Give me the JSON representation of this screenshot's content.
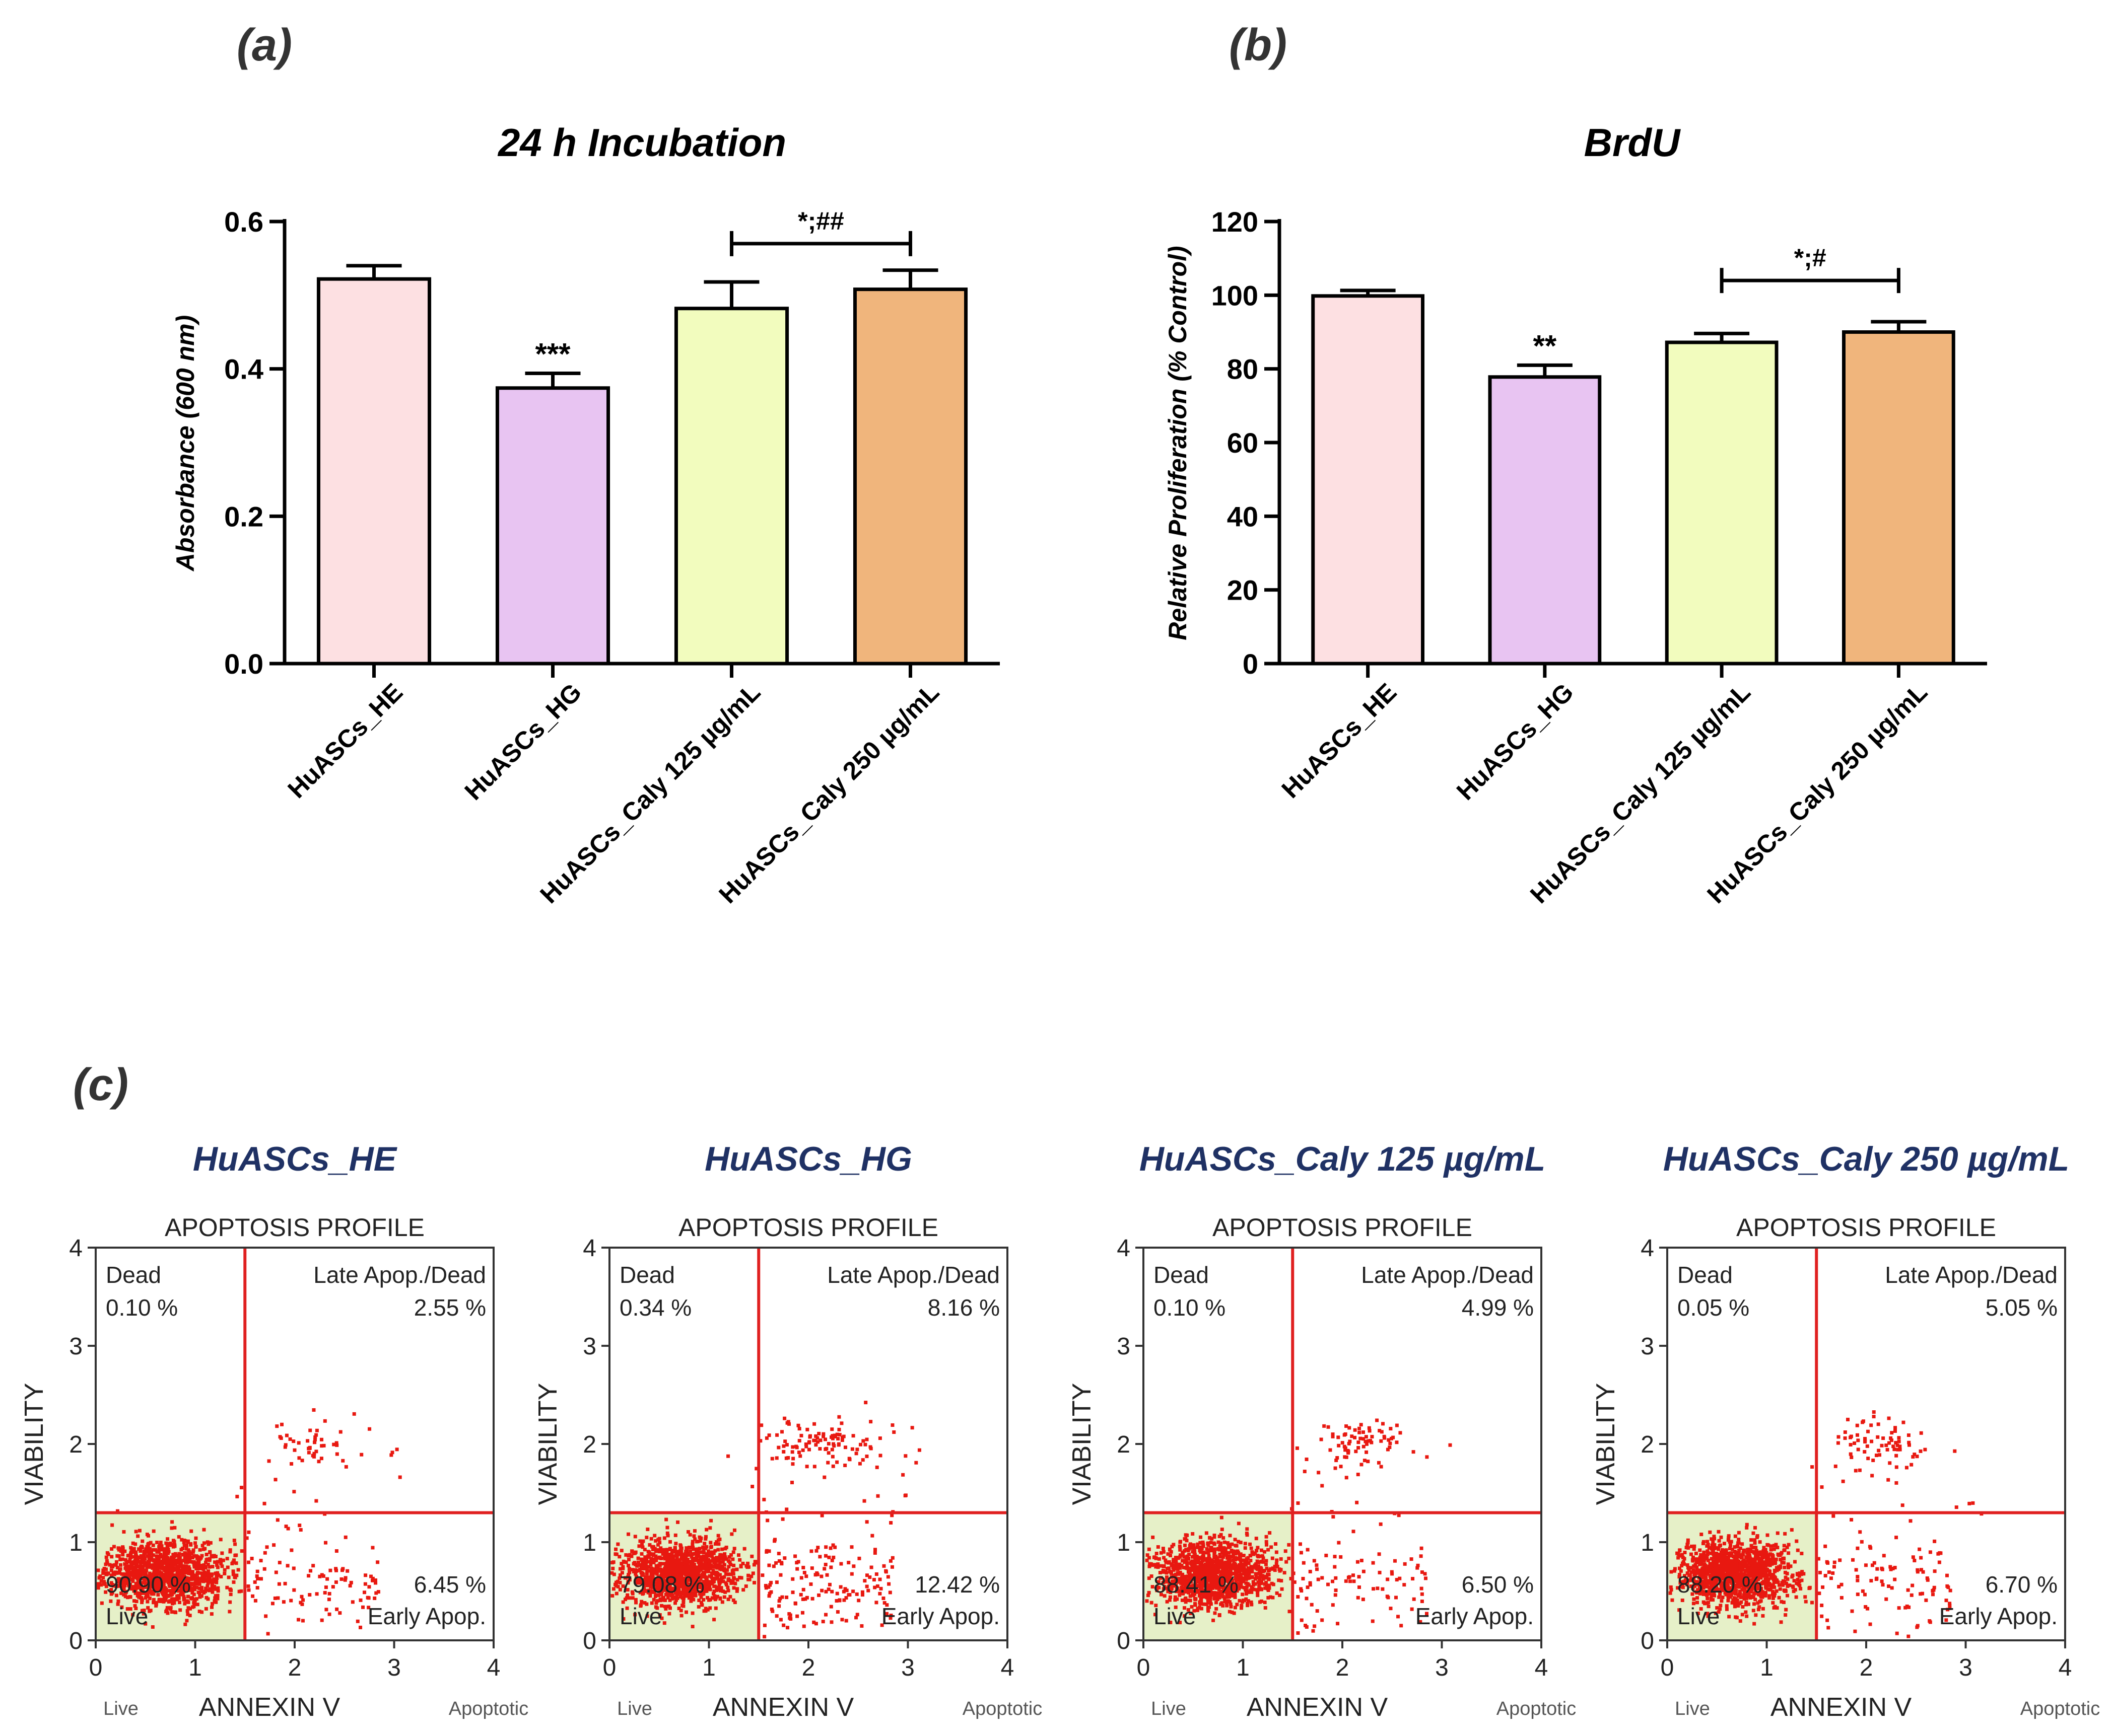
{
  "panel_labels": {
    "a": "(a)",
    "b": "(b)",
    "c": "(c)"
  },
  "colors": {
    "he": "#fde0e2",
    "hg": "#e8c4f2",
    "caly125": "#f2fcbe",
    "caly250": "#f0b57c",
    "flow_title": "#1f3164",
    "quadrant": "#e02020",
    "dots": "#e81810",
    "live_fill": "#e6f0c8"
  },
  "chart_data": [
    {
      "type": "bar",
      "title": "24 h Incubation",
      "xlabel": "",
      "ylabel": "Absorbance (600 nm)",
      "ylim": [
        0,
        0.6
      ],
      "yticks": [
        "0.0",
        "0.2",
        "0.4",
        "0.6"
      ],
      "categories": [
        "HuASCs_HE",
        "HuASCs_HG",
        "HuASCs_Caly 125 µg/mL",
        "HuASCs_Caly 250 µg/mL"
      ],
      "values": [
        0.522,
        0.374,
        0.482,
        0.508
      ],
      "errors": [
        0.018,
        0.02,
        0.036,
        0.026
      ],
      "significance": [
        "",
        "***",
        "",
        ""
      ],
      "bracket": {
        "from": 2,
        "to": 3,
        "label": "*;##",
        "value": 0.57
      }
    },
    {
      "type": "bar",
      "title": "BrdU",
      "xlabel": "",
      "ylabel": "Relative Proliferation (% Control)",
      "ylim": [
        0,
        120
      ],
      "yticks": [
        "0",
        "20",
        "40",
        "60",
        "80",
        "100",
        "120"
      ],
      "categories": [
        "HuASCs_HE",
        "HuASCs_HG",
        "HuASCs_Caly 125 µg/mL",
        "HuASCs_Caly 250 µg/mL"
      ],
      "values": [
        99.8,
        77.8,
        87.2,
        90.0
      ],
      "errors": [
        1.5,
        3.2,
        2.4,
        2.8
      ],
      "significance": [
        "",
        "**",
        "",
        ""
      ],
      "bracket": {
        "from": 2,
        "to": 3,
        "label": "*;#",
        "value": 104
      }
    },
    {
      "type": "scatter",
      "title": "HuASCs_HE",
      "plot_title": "APOPTOSIS PROFILE",
      "xlabel": "ANNEXIN V",
      "ylabel": "VIABILITY",
      "xlim": [
        0,
        4
      ],
      "ylim": [
        0,
        4
      ],
      "xticks": [
        "0",
        "1",
        "2",
        "3",
        "4"
      ],
      "yticks": [
        "0",
        "1",
        "2",
        "3",
        "4"
      ],
      "x_sub_left": "Live",
      "x_sub_right": "Apoptotic",
      "gates": {
        "x": 1.5,
        "y": 1.3
      },
      "quadrants": {
        "dead": {
          "label": "Dead",
          "value": "0.10 %"
        },
        "late": {
          "label": "Late Apop./Dead",
          "value": "2.55 %"
        },
        "early": {
          "label": "Early Apop.",
          "value": "6.45 %"
        },
        "live": {
          "label": "Live",
          "value": "90.90 %"
        }
      }
    },
    {
      "type": "scatter",
      "title": "HuASCs_HG",
      "plot_title": "APOPTOSIS PROFILE",
      "xlabel": "ANNEXIN V",
      "ylabel": "VIABILITY",
      "xlim": [
        0,
        4
      ],
      "ylim": [
        0,
        4
      ],
      "xticks": [
        "0",
        "1",
        "2",
        "3",
        "4"
      ],
      "yticks": [
        "0",
        "1",
        "2",
        "3",
        "4"
      ],
      "x_sub_left": "Live",
      "x_sub_right": "Apoptotic",
      "gates": {
        "x": 1.5,
        "y": 1.3
      },
      "quadrants": {
        "dead": {
          "label": "Dead",
          "value": "0.34 %"
        },
        "late": {
          "label": "Late Apop./Dead",
          "value": "8.16 %"
        },
        "early": {
          "label": "Early Apop.",
          "value": "12.42 %"
        },
        "live": {
          "label": "Live",
          "value": "79.08 %"
        }
      }
    },
    {
      "type": "scatter",
      "title": "HuASCs_Caly 125 µg/mL",
      "plot_title": "APOPTOSIS PROFILE",
      "xlabel": "ANNEXIN V",
      "ylabel": "VIABILITY",
      "xlim": [
        0,
        4
      ],
      "ylim": [
        0,
        4
      ],
      "xticks": [
        "0",
        "1",
        "2",
        "3",
        "4"
      ],
      "yticks": [
        "0",
        "1",
        "2",
        "3",
        "4"
      ],
      "x_sub_left": "Live",
      "x_sub_right": "Apoptotic",
      "gates": {
        "x": 1.5,
        "y": 1.3
      },
      "quadrants": {
        "dead": {
          "label": "Dead",
          "value": "0.10 %"
        },
        "late": {
          "label": "Late Apop./Dead",
          "value": "4.99 %"
        },
        "early": {
          "label": "Early Apop.",
          "value": "6.50 %"
        },
        "live": {
          "label": "Live",
          "value": "88.41 %"
        }
      }
    },
    {
      "type": "scatter",
      "title": "HuASCs_Caly 250 µg/mL",
      "plot_title": "APOPTOSIS PROFILE",
      "xlabel": "ANNEXIN V",
      "ylabel": "VIABILITY",
      "xlim": [
        0,
        4
      ],
      "ylim": [
        0,
        4
      ],
      "xticks": [
        "0",
        "1",
        "2",
        "3",
        "4"
      ],
      "yticks": [
        "0",
        "1",
        "2",
        "3",
        "4"
      ],
      "x_sub_left": "Live",
      "x_sub_right": "Apoptotic",
      "gates": {
        "x": 1.5,
        "y": 1.3
      },
      "quadrants": {
        "dead": {
          "label": "Dead",
          "value": "0.05 %"
        },
        "late": {
          "label": "Late Apop./Dead",
          "value": "5.05 %"
        },
        "early": {
          "label": "Early Apop.",
          "value": "6.70 %"
        },
        "live": {
          "label": "Live",
          "value": "88.20 %"
        }
      }
    }
  ]
}
